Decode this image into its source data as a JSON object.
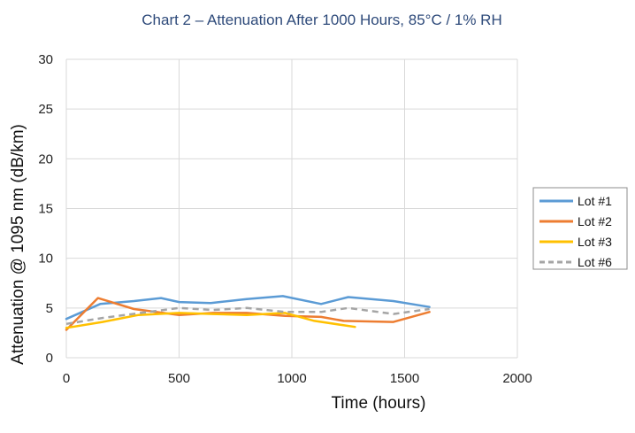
{
  "chart_data": {
    "type": "line",
    "title": "Chart 2 – Attenuation After 1000 Hours, 85°C / 1% RH",
    "xlabel": "Time (hours)",
    "ylabel": "Attenuation @ 1095 nm (dB/km)",
    "xlim": [
      0,
      2000
    ],
    "ylim": [
      0,
      30
    ],
    "x_ticks": [
      0,
      500,
      1000,
      1500,
      2000
    ],
    "y_ticks": [
      0,
      5,
      10,
      15,
      20,
      25,
      30
    ],
    "x_tick_labels": [
      "0",
      "500",
      "1000",
      "1500",
      "2000"
    ],
    "y_tick_labels": [
      "0",
      "5",
      "10",
      "15",
      "20",
      "25",
      "30"
    ],
    "grid": true,
    "legend_position": "right",
    "series": [
      {
        "name": "Lot #1",
        "color": "#5b9bd5",
        "dash": "solid",
        "x": [
          0,
          150,
          300,
          420,
          500,
          640,
          800,
          960,
          1130,
          1250,
          1450,
          1610
        ],
        "y": [
          3.9,
          5.4,
          5.7,
          6.0,
          5.6,
          5.5,
          5.9,
          6.2,
          5.4,
          6.1,
          5.7,
          5.1
        ]
      },
      {
        "name": "Lot #2",
        "color": "#ed7d31",
        "dash": "solid",
        "x": [
          0,
          140,
          300,
          500,
          650,
          800,
          970,
          1130,
          1230,
          1450,
          1610
        ],
        "y": [
          2.8,
          6.0,
          4.9,
          4.3,
          4.5,
          4.5,
          4.2,
          4.1,
          3.7,
          3.6,
          4.6
        ]
      },
      {
        "name": "Lot #3",
        "color": "#ffc000",
        "dash": "solid",
        "x": [
          0,
          160,
          320,
          500,
          650,
          800,
          970,
          1100,
          1280
        ],
        "y": [
          3.0,
          3.6,
          4.3,
          4.5,
          4.4,
          4.3,
          4.5,
          3.7,
          3.1
        ]
      },
      {
        "name": "Lot #6",
        "color": "#a5a5a5",
        "dash": "dashed",
        "x": [
          0,
          160,
          330,
          500,
          650,
          800,
          970,
          1130,
          1250,
          1450,
          1610
        ],
        "y": [
          3.4,
          4.0,
          4.5,
          5.0,
          4.8,
          5.0,
          4.6,
          4.6,
          5.0,
          4.4,
          4.9
        ]
      }
    ]
  }
}
